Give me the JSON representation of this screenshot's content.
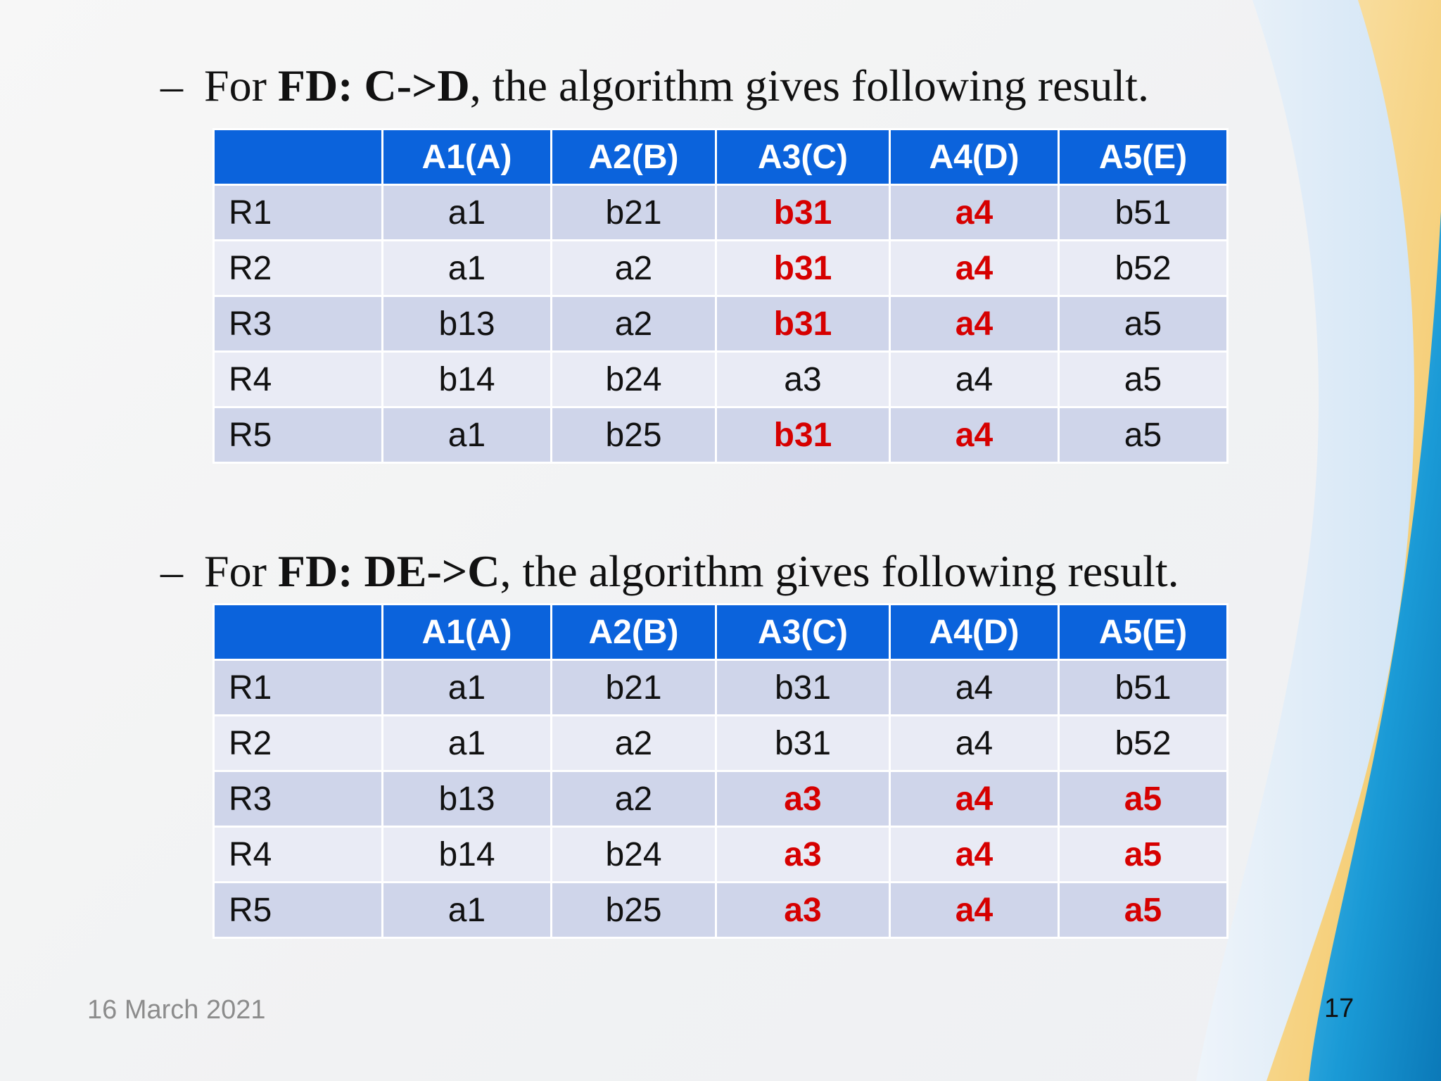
{
  "section1": {
    "bullet": "–",
    "prefix": "For ",
    "fd": "FD: C->D",
    "suffix": ", the algorithm gives following result."
  },
  "section2": {
    "bullet": "–",
    "prefix": "For ",
    "fd": "FD: DE->C",
    "suffix": ", the algorithm gives following result."
  },
  "table_headers": [
    "",
    "A1(A)",
    "A2(B)",
    "A3(C)",
    "A4(D)",
    "A5(E)"
  ],
  "table1": {
    "rows": [
      {
        "label": "R1",
        "cells": [
          "a1",
          "b21",
          "b31",
          "a4",
          "b51"
        ]
      },
      {
        "label": "R2",
        "cells": [
          "a1",
          "a2",
          "b31",
          "a4",
          "b52"
        ]
      },
      {
        "label": "R3",
        "cells": [
          "b13",
          "a2",
          "b31",
          "a4",
          "a5"
        ]
      },
      {
        "label": "R4",
        "cells": [
          "b14",
          "b24",
          "a3",
          "a4",
          "a5"
        ]
      },
      {
        "label": "R5",
        "cells": [
          "a1",
          "b25",
          "b31",
          "a4",
          "a5"
        ]
      }
    ],
    "highlight_color": "#d60000"
  },
  "table2": {
    "rows": [
      {
        "label": "R1",
        "cells": [
          "a1",
          "b21",
          "b31",
          "a4",
          "b51"
        ]
      },
      {
        "label": "R2",
        "cells": [
          "a1",
          "a2",
          "b31",
          "a4",
          "b52"
        ]
      },
      {
        "label": "R3",
        "cells": [
          "b13",
          "a2",
          "a3",
          "a4",
          "a5"
        ]
      },
      {
        "label": "R4",
        "cells": [
          "b14",
          "b24",
          "a3",
          "a4",
          "a5"
        ]
      },
      {
        "label": "R5",
        "cells": [
          "a1",
          "b25",
          "a3",
          "a4",
          "a5"
        ]
      }
    ],
    "highlight_color": "#d60000"
  },
  "footer": {
    "date": "16 March 2021",
    "page_number": "17"
  },
  "colors": {
    "header_bg": "#0b63dc",
    "row_dark": "#cfd5ea",
    "row_light": "#e9ebf5",
    "highlight_text": "#d60000",
    "wave_blue": "#1a9ad6",
    "wave_gold": "#f3c96b"
  }
}
